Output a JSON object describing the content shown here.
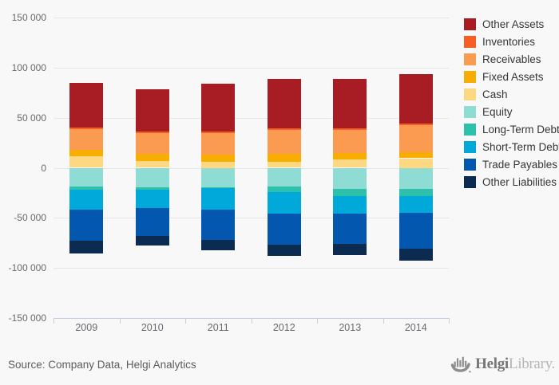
{
  "source": {
    "text": "Source: Company Data, Helgi Analytics"
  },
  "logo": {
    "icon": "ship-icon",
    "brand": "Helgi",
    "brand_suffix": "Library."
  },
  "chart_data": {
    "type": "bar",
    "stacked": true,
    "title": "",
    "xlabel": "",
    "ylabel": "",
    "categories": [
      "2009",
      "2010",
      "2011",
      "2012",
      "2013",
      "2014"
    ],
    "series": [
      {
        "name": "Other Assets",
        "color": "#a71d23",
        "values": [
          44400,
          42700,
          47300,
          49200,
          49200,
          49200
        ]
      },
      {
        "name": "Inventories",
        "color": "#f65e25",
        "values": [
          1600,
          1400,
          1600,
          1600,
          1600,
          1600
        ]
      },
      {
        "name": "Receivables",
        "color": "#fb9a51",
        "values": [
          20700,
          21000,
          21500,
          24100,
          22900,
          26900
        ]
      },
      {
        "name": "Fixed Assets",
        "color": "#f7ae00",
        "values": [
          6400,
          7200,
          7400,
          7500,
          6600,
          6100
        ]
      },
      {
        "name": "Cash",
        "color": "#fcd883",
        "values": [
          11800,
          6500,
          6000,
          6200,
          8300,
          9600
        ]
      },
      {
        "name": "Equity",
        "color": "#8edcd3",
        "values": [
          -18700,
          -19800,
          -19500,
          -19000,
          -20900,
          -20900
        ]
      },
      {
        "name": "Long-Term Debt",
        "color": "#2dc1ab",
        "values": [
          -3200,
          -1900,
          -1000,
          -5100,
          -7200,
          -7400
        ]
      },
      {
        "name": "Short-Term Debt",
        "color": "#00a9da",
        "values": [
          -19900,
          -18300,
          -21300,
          -21800,
          -17800,
          -17000
        ]
      },
      {
        "name": "Trade Payables",
        "color": "#0357ae",
        "values": [
          -31100,
          -28400,
          -30000,
          -31300,
          -30000,
          -35400
        ]
      },
      {
        "name": "Other Liabilities",
        "color": "#0b2b50",
        "values": [
          -12700,
          -9600,
          -10800,
          -11200,
          -11600,
          -12000
        ]
      }
    ],
    "ylim": [
      -150000,
      150000
    ],
    "yticks": [
      {
        "value": 150000,
        "label": "150 000"
      },
      {
        "value": 100000,
        "label": "100 000"
      },
      {
        "value": 50000,
        "label": "50 000"
      },
      {
        "value": 0,
        "label": "0"
      },
      {
        "value": -50000,
        "label": "-50 000"
      },
      {
        "value": -100000,
        "label": "-100 000"
      },
      {
        "value": -150000,
        "label": "-150 000"
      }
    ],
    "grid": true,
    "legend_position": "right"
  }
}
